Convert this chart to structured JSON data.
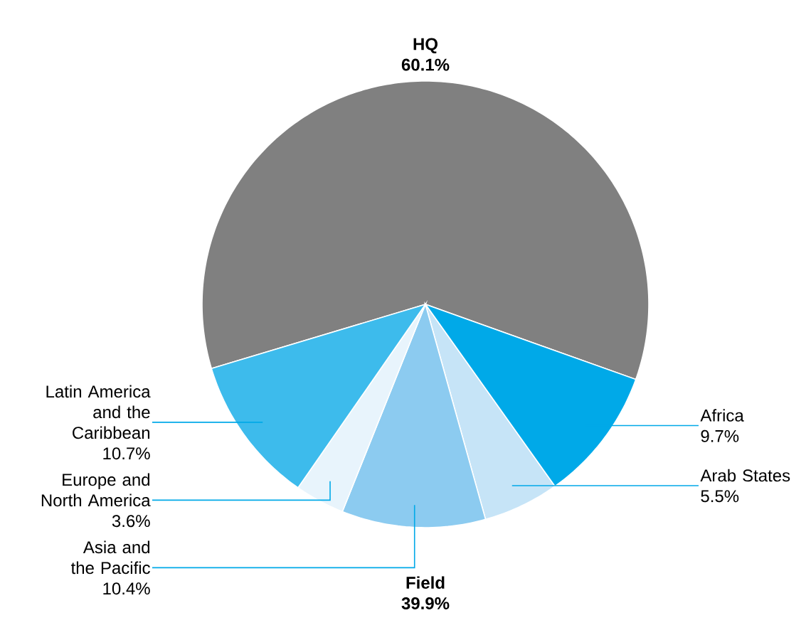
{
  "chart_data": {
    "type": "pie",
    "categories": [
      "HQ",
      "Africa",
      "Arab States",
      "Asia and the Pacific",
      "Europe and North America",
      "Latin America and the Caribbean"
    ],
    "values": [
      60.1,
      9.7,
      5.5,
      10.4,
      3.6,
      10.7
    ],
    "colors": [
      "#808080",
      "#00a9e8",
      "#c6e4f7",
      "#8ccbf0",
      "#e8f4fc",
      "#3dbbec"
    ],
    "value_labels": [
      "60.1%",
      "9.7%",
      "5.5%",
      "10.4%",
      "3.6%",
      "10.7%"
    ],
    "annotations": [
      "Field 39.9%"
    ]
  }
}
